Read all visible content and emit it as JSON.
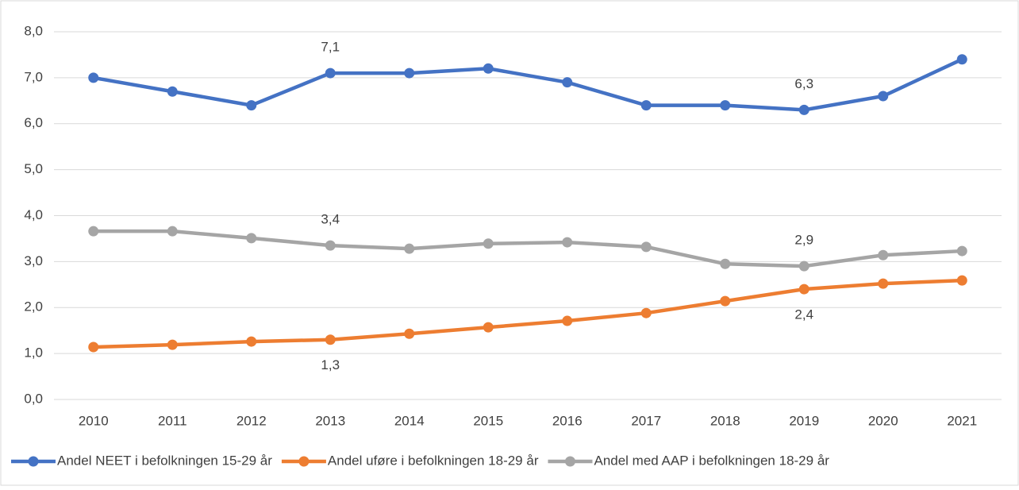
{
  "chart_data": {
    "type": "line",
    "categories": [
      "2010",
      "2011",
      "2012",
      "2013",
      "2014",
      "2015",
      "2016",
      "2017",
      "2018",
      "2019",
      "2020",
      "2021"
    ],
    "series": [
      {
        "name": "Andel NEET i befolkningen 15-29 år",
        "color": "#4472c4",
        "values": [
          7.0,
          6.7,
          6.4,
          7.1,
          7.1,
          7.2,
          6.9,
          6.4,
          6.4,
          6.3,
          6.6,
          7.4
        ],
        "value_labels": [
          null,
          null,
          null,
          "7,1",
          null,
          null,
          null,
          null,
          null,
          "6,3",
          null,
          null
        ]
      },
      {
        "name": "Andel uføre i befolkningen 18-29 år",
        "color": "#ed7d31",
        "values": [
          1.14,
          1.19,
          1.26,
          1.3,
          1.43,
          1.57,
          1.71,
          1.88,
          2.14,
          2.4,
          2.52,
          2.59
        ],
        "value_labels": [
          null,
          null,
          null,
          "1,3",
          null,
          null,
          null,
          null,
          null,
          "2,4",
          null,
          null
        ]
      },
      {
        "name": "Andel med AAP i befolkningen 18-29 år",
        "color": "#a5a5a5",
        "values": [
          3.66,
          3.66,
          3.51,
          3.35,
          3.28,
          3.39,
          3.42,
          3.32,
          2.95,
          2.9,
          3.14,
          3.23
        ],
        "value_labels": [
          null,
          null,
          null,
          "3,4",
          null,
          null,
          null,
          null,
          null,
          "2,9",
          null,
          null
        ]
      }
    ],
    "ylim": [
      0,
      8
    ],
    "yticks": [
      {
        "value": 0,
        "label": "0,0"
      },
      {
        "value": 1,
        "label": "1,0"
      },
      {
        "value": 2,
        "label": "2,0"
      },
      {
        "value": 3,
        "label": "3,0"
      },
      {
        "value": 4,
        "label": "4,0"
      },
      {
        "value": 5,
        "label": "5,0"
      },
      {
        "value": 6,
        "label": "6,0"
      },
      {
        "value": 7,
        "label": "7,0"
      },
      {
        "value": 8,
        "label": "8,0"
      }
    ],
    "grid": true,
    "legend": "bottom"
  }
}
